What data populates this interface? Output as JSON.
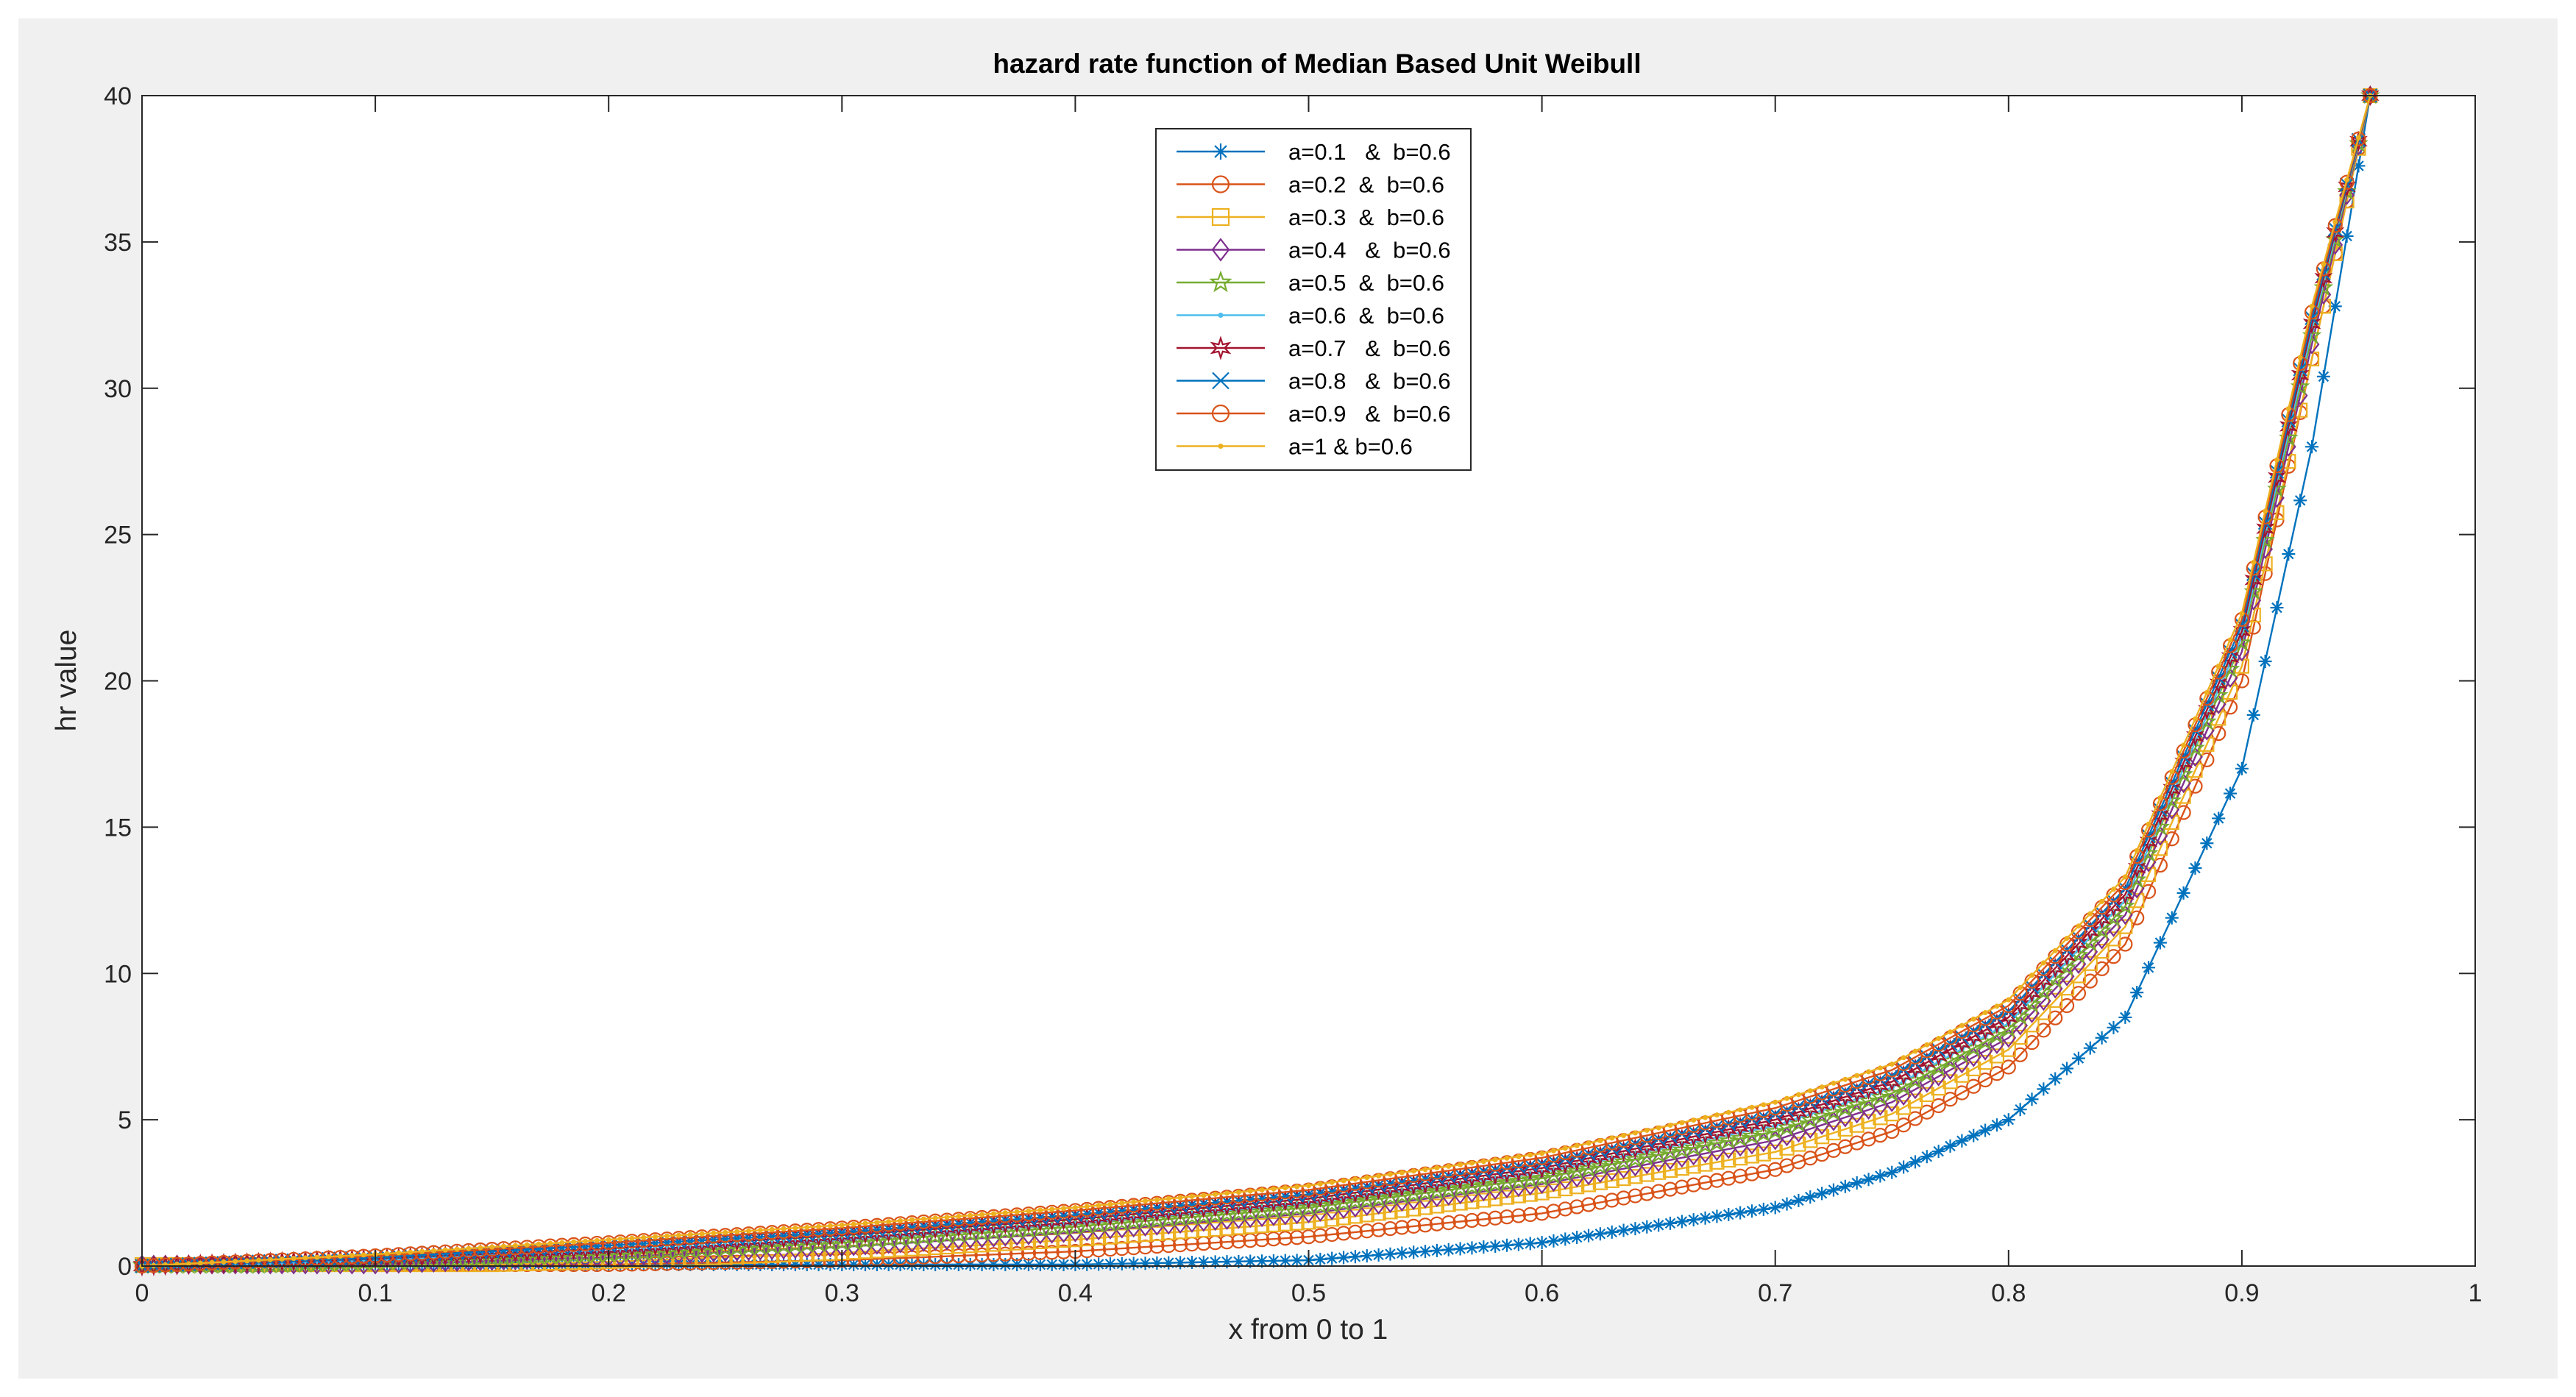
{
  "chart_data": {
    "type": "line",
    "title": "hazard rate function of Median Based  Unit  Weibull",
    "xlabel": "x from 0 to 1",
    "ylabel": "hr value",
    "xlim": [
      0,
      1
    ],
    "ylim": [
      0,
      40
    ],
    "xticks": [
      "0",
      "0.1",
      "0.2",
      "0.3",
      "0.4",
      "0.5",
      "0.6",
      "0.7",
      "0.8",
      "0.9",
      "1"
    ],
    "yticks": [
      "0",
      "5",
      "10",
      "15",
      "20",
      "25",
      "30",
      "35",
      "40"
    ],
    "grid": false,
    "legend_position": "top-center",
    "x_step": 0.005,
    "series": [
      {
        "name": "a=0.1   &  b=0.6",
        "a": 0.1,
        "color": "#0072BD",
        "marker": "asterisk",
        "x": [
          0.4,
          0.5,
          0.6,
          0.7,
          0.75,
          0.8,
          0.85,
          0.9,
          0.93,
          0.955
        ],
        "y": [
          0.05,
          0.2,
          0.8,
          2.0,
          3.2,
          5.0,
          8.5,
          17,
          28,
          40
        ]
      },
      {
        "name": "a=0.2  &  b=0.6",
        "a": 0.2,
        "color": "#D95319",
        "marker": "circle",
        "x": [
          0.2,
          0.3,
          0.4,
          0.5,
          0.6,
          0.7,
          0.75,
          0.8,
          0.85,
          0.9,
          0.93,
          0.955
        ],
        "y": [
          0.05,
          0.2,
          0.5,
          1.0,
          1.8,
          3.3,
          4.6,
          6.8,
          11,
          20,
          31,
          40
        ]
      },
      {
        "name": "a=0.3  &  b=0.6",
        "a": 0.3,
        "color": "#EDB120",
        "marker": "square",
        "x": [
          0.15,
          0.2,
          0.3,
          0.4,
          0.5,
          0.6,
          0.7,
          0.75,
          0.8,
          0.85,
          0.9,
          0.93,
          0.955
        ],
        "y": [
          0.05,
          0.15,
          0.45,
          0.9,
          1.5,
          2.5,
          3.9,
          5.2,
          7.4,
          11.6,
          20.5,
          31,
          40
        ]
      },
      {
        "name": "a=0.4   &  b=0.6",
        "a": 0.4,
        "color": "#7E2F8E",
        "marker": "diamond",
        "x": [
          0.1,
          0.2,
          0.3,
          0.4,
          0.5,
          0.6,
          0.7,
          0.75,
          0.8,
          0.85,
          0.9,
          0.93,
          0.955
        ],
        "y": [
          0.05,
          0.3,
          0.65,
          1.15,
          1.8,
          2.8,
          4.3,
          5.6,
          7.8,
          12,
          21,
          31.5,
          40
        ]
      },
      {
        "name": "a=0.5  &  b=0.6",
        "a": 0.5,
        "color": "#77AC30",
        "marker": "pentagram",
        "x": [
          0.05,
          0.1,
          0.2,
          0.3,
          0.4,
          0.5,
          0.6,
          0.7,
          0.75,
          0.8,
          0.85,
          0.9,
          0.93,
          0.955
        ],
        "y": [
          0.02,
          0.12,
          0.4,
          0.8,
          1.35,
          2.0,
          3.0,
          4.6,
          5.9,
          8.1,
          12.3,
          21.3,
          31.8,
          40
        ]
      },
      {
        "name": "a=0.6  &  b=0.6",
        "a": 0.6,
        "color": "#4DBEEE",
        "marker": "point",
        "x": [
          0.05,
          0.1,
          0.2,
          0.3,
          0.4,
          0.5,
          0.6,
          0.7,
          0.75,
          0.8,
          0.85,
          0.9,
          0.93,
          0.955
        ],
        "y": [
          0.05,
          0.2,
          0.5,
          0.9,
          1.45,
          2.15,
          3.2,
          4.8,
          6.1,
          8.3,
          12.5,
          21.5,
          32,
          40
        ]
      },
      {
        "name": "a=0.7   &  b=0.6",
        "a": 0.7,
        "color": "#A2142F",
        "marker": "hexagram",
        "x": [
          0,
          0.1,
          0.2,
          0.3,
          0.4,
          0.5,
          0.6,
          0.7,
          0.75,
          0.8,
          0.85,
          0.9,
          0.93,
          0.955
        ],
        "y": [
          0,
          0.25,
          0.6,
          1.05,
          1.6,
          2.3,
          3.35,
          5.0,
          6.3,
          8.5,
          12.7,
          21.7,
          32.2,
          40
        ]
      },
      {
        "name": "a=0.8   &  b=0.6",
        "a": 0.8,
        "color": "#0072BD",
        "marker": "x",
        "x": [
          0,
          0.1,
          0.2,
          0.3,
          0.4,
          0.5,
          0.6,
          0.7,
          0.75,
          0.8,
          0.85,
          0.9,
          0.93,
          0.955
        ],
        "y": [
          0,
          0.3,
          0.7,
          1.15,
          1.75,
          2.45,
          3.5,
          5.2,
          6.5,
          8.7,
          12.9,
          21.9,
          32.4,
          40
        ]
      },
      {
        "name": "a=0.9   &  b=0.6",
        "a": 0.9,
        "color": "#D95319",
        "marker": "circle",
        "x": [
          0,
          0.1,
          0.2,
          0.3,
          0.4,
          0.5,
          0.6,
          0.7,
          0.75,
          0.8,
          0.85,
          0.9,
          0.93,
          0.955
        ],
        "y": [
          0,
          0.35,
          0.8,
          1.3,
          1.9,
          2.6,
          3.7,
          5.4,
          6.7,
          8.9,
          13.1,
          22.1,
          32.6,
          40
        ]
      },
      {
        "name": "a=1 & b=0.6",
        "a": 1.0,
        "color": "#EDB120",
        "marker": "point",
        "x": [
          0,
          0.1,
          0.2,
          0.3,
          0.4,
          0.5,
          0.6,
          0.7,
          0.75,
          0.8,
          0.85,
          0.9,
          0.93,
          0.955
        ],
        "y": [
          0,
          0.4,
          0.9,
          1.4,
          2.0,
          2.75,
          3.85,
          5.6,
          6.9,
          9.1,
          13.3,
          22.3,
          32.8,
          40
        ]
      }
    ]
  }
}
